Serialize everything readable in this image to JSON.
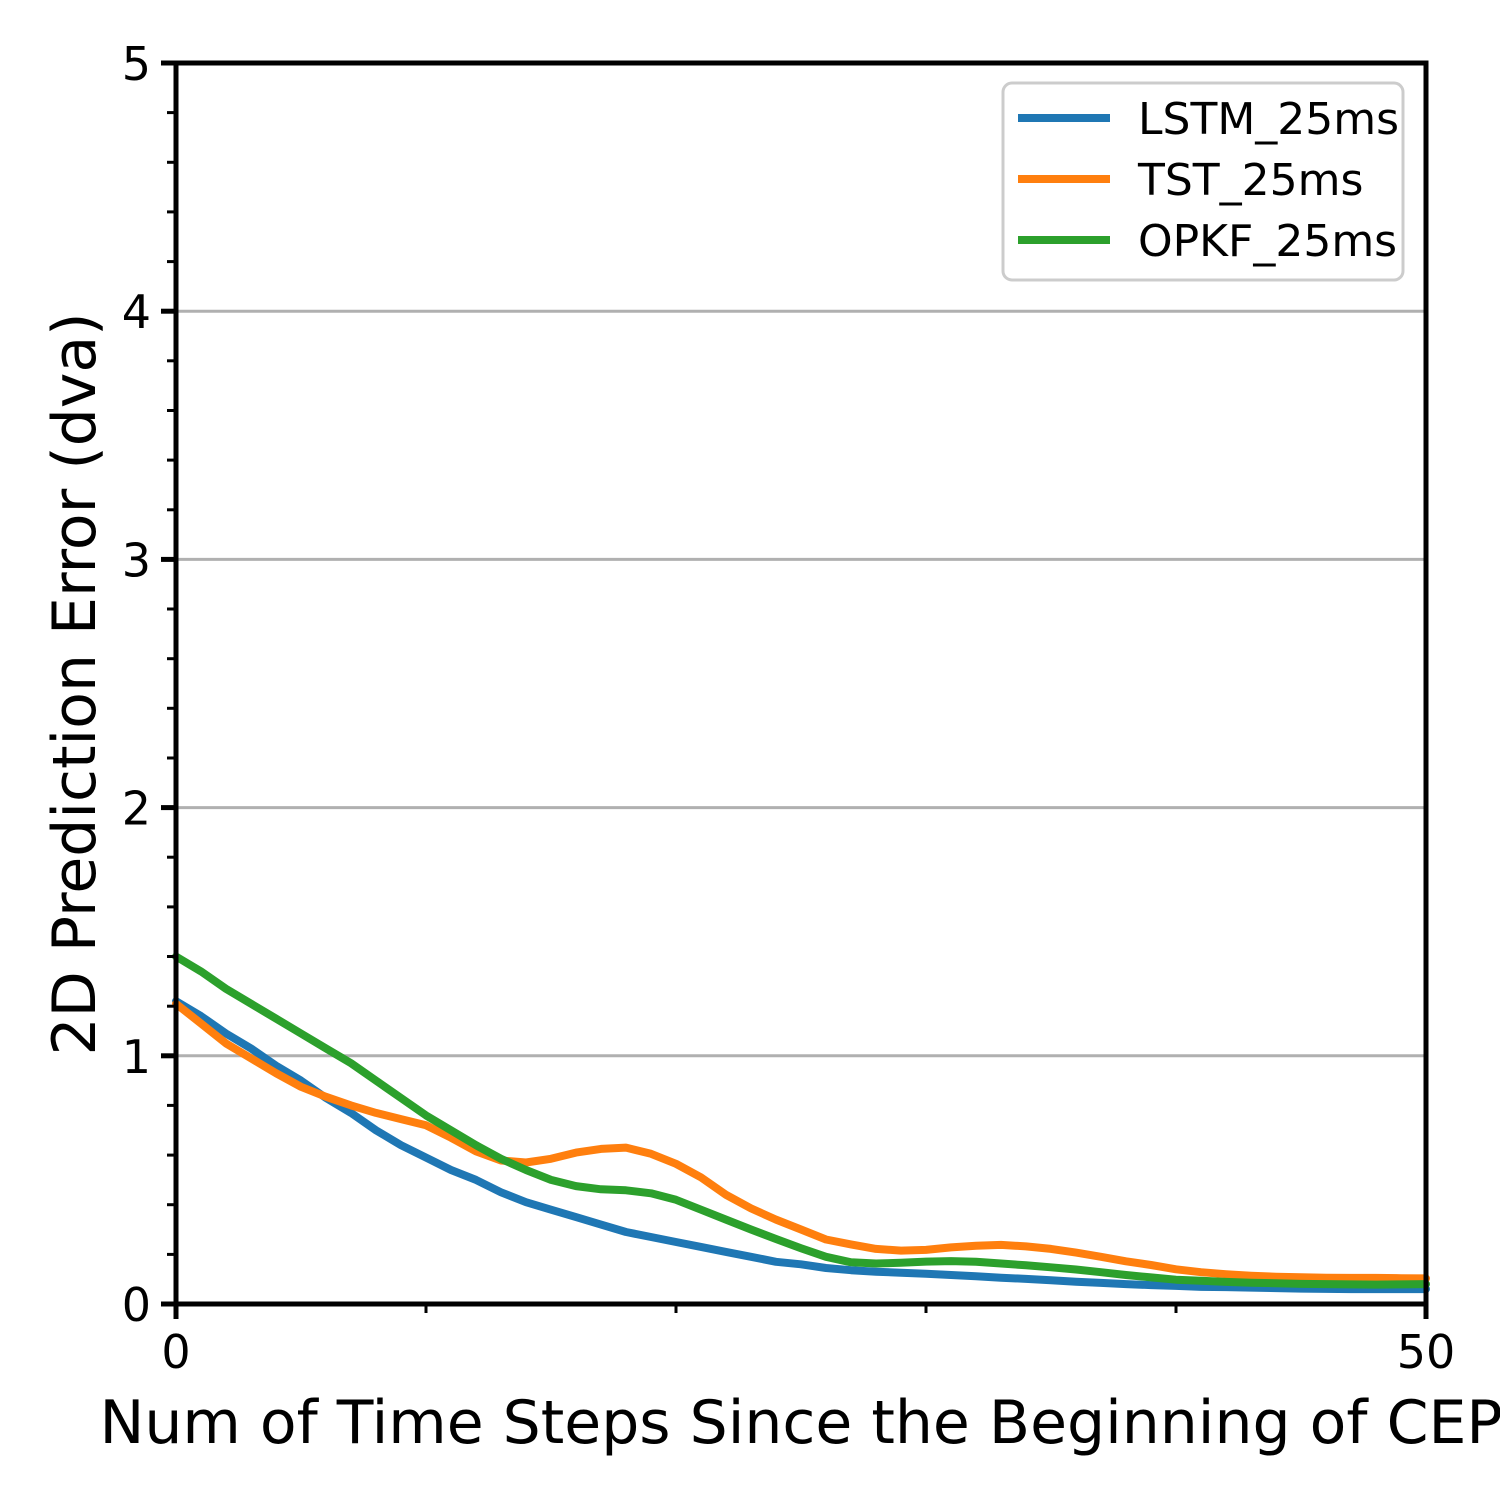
{
  "figure": {
    "background": "#ffffff",
    "text_color": "#000000",
    "spine_color": "#000000"
  },
  "chart_data": {
    "type": "line",
    "title": "",
    "xlabel": "Num of Time Steps Since the Beginning of CEP",
    "ylabel": "2D Prediction Error (dva)",
    "xlim": [
      0,
      50
    ],
    "ylim": [
      0,
      5
    ],
    "x_major_ticks": [
      0,
      50
    ],
    "x_minor_ticks": [
      10,
      20,
      30,
      40
    ],
    "y_major_ticks": [
      0,
      1,
      2,
      3,
      4,
      5
    ],
    "y_minor_tick_step": 0.2,
    "grid": "horizontal",
    "grid_y_values": [
      1,
      2,
      3,
      4
    ],
    "grid_color": "#b0b0b0",
    "legend_position": "upper right",
    "x": [
      0,
      1,
      2,
      3,
      4,
      5,
      6,
      7,
      8,
      9,
      10,
      11,
      12,
      13,
      14,
      15,
      16,
      17,
      18,
      19,
      20,
      21,
      22,
      23,
      24,
      25,
      26,
      27,
      28,
      29,
      30,
      31,
      32,
      33,
      34,
      35,
      36,
      37,
      38,
      39,
      40,
      41,
      42,
      43,
      44,
      45,
      46,
      47,
      48,
      49,
      50
    ],
    "series": [
      {
        "name": "LSTM_25ms",
        "color": "#1f77b4",
        "values": [
          1.22,
          1.16,
          1.09,
          1.03,
          0.96,
          0.9,
          0.83,
          0.77,
          0.7,
          0.64,
          0.59,
          0.54,
          0.5,
          0.45,
          0.41,
          0.38,
          0.35,
          0.32,
          0.29,
          0.27,
          0.25,
          0.23,
          0.21,
          0.19,
          0.17,
          0.16,
          0.145,
          0.136,
          0.13,
          0.126,
          0.122,
          0.117,
          0.112,
          0.106,
          0.101,
          0.096,
          0.09,
          0.085,
          0.08,
          0.076,
          0.073,
          0.069,
          0.068,
          0.066,
          0.064,
          0.062,
          0.061,
          0.06,
          0.06,
          0.06,
          0.06
        ]
      },
      {
        "name": "TST_25ms",
        "color": "#ff7f0e",
        "values": [
          1.21,
          1.13,
          1.05,
          0.99,
          0.93,
          0.875,
          0.835,
          0.8,
          0.77,
          0.745,
          0.72,
          0.67,
          0.615,
          0.578,
          0.57,
          0.585,
          0.61,
          0.625,
          0.63,
          0.605,
          0.565,
          0.51,
          0.44,
          0.385,
          0.34,
          0.3,
          0.26,
          0.24,
          0.222,
          0.215,
          0.218,
          0.228,
          0.235,
          0.238,
          0.232,
          0.222,
          0.207,
          0.19,
          0.172,
          0.157,
          0.14,
          0.128,
          0.12,
          0.114,
          0.11,
          0.108,
          0.106,
          0.105,
          0.105,
          0.104,
          0.103
        ]
      },
      {
        "name": "OPKF_25ms",
        "color": "#2ca02c",
        "values": [
          1.4,
          1.34,
          1.27,
          1.21,
          1.15,
          1.09,
          1.03,
          0.97,
          0.9,
          0.83,
          0.76,
          0.7,
          0.64,
          0.585,
          0.54,
          0.5,
          0.475,
          0.462,
          0.458,
          0.446,
          0.42,
          0.38,
          0.34,
          0.3,
          0.262,
          0.225,
          0.19,
          0.168,
          0.163,
          0.166,
          0.171,
          0.173,
          0.17,
          0.163,
          0.156,
          0.148,
          0.139,
          0.128,
          0.117,
          0.107,
          0.098,
          0.094,
          0.089,
          0.086,
          0.084,
          0.081,
          0.08,
          0.079,
          0.078,
          0.079,
          0.08
        ]
      }
    ]
  }
}
